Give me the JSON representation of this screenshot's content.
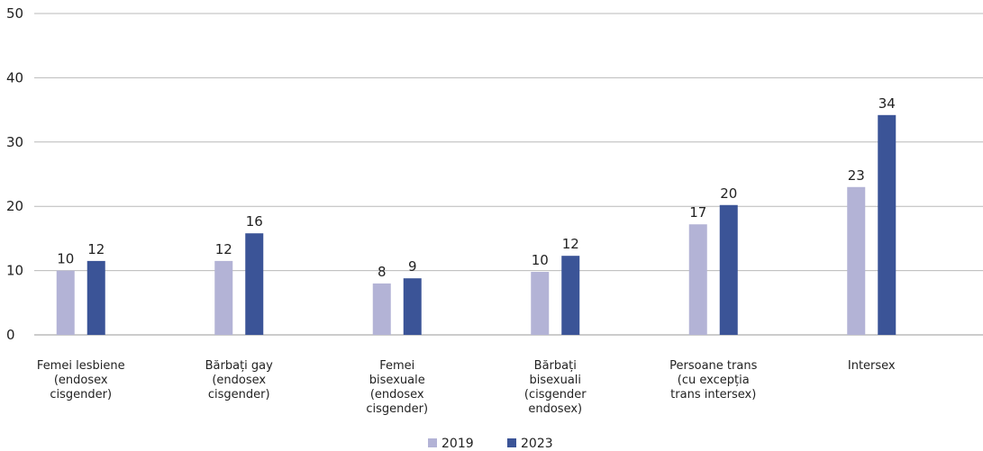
{
  "chart_data": {
    "type": "bar",
    "categories": [
      [
        "Femei lesbiene",
        "(endosex",
        "cisgender)"
      ],
      [
        "Bărbați gay",
        "(endosex",
        "cisgender)"
      ],
      [
        "Femei",
        "bisexuale",
        "(endosex",
        "cisgender)"
      ],
      [
        "Bărbați",
        "bisexuali",
        "(cisgender",
        "endosex)"
      ],
      [
        "Persoane trans",
        "(cu excepția",
        "trans intersex)"
      ],
      [
        "Intersex"
      ]
    ],
    "series": [
      {
        "name": "2019",
        "values": [
          10,
          11.5,
          8,
          9.8,
          17.2,
          23
        ],
        "labels": [
          "10",
          "12",
          "8",
          "10",
          "17",
          "23"
        ],
        "color": "#b3b3d6"
      },
      {
        "name": "2023",
        "values": [
          11.5,
          15.8,
          8.8,
          12.3,
          20.2,
          34.2
        ],
        "labels": [
          "12",
          "16",
          "9",
          "12",
          "20",
          "34"
        ],
        "color": "#3b5497"
      }
    ],
    "yticks": [
      "0",
      "10",
      "20",
      "30",
      "40",
      "50"
    ],
    "ylim": [
      0,
      50
    ],
    "grid": true,
    "legend_position": "bottom-center",
    "title": "",
    "xlabel": "",
    "ylabel": ""
  }
}
